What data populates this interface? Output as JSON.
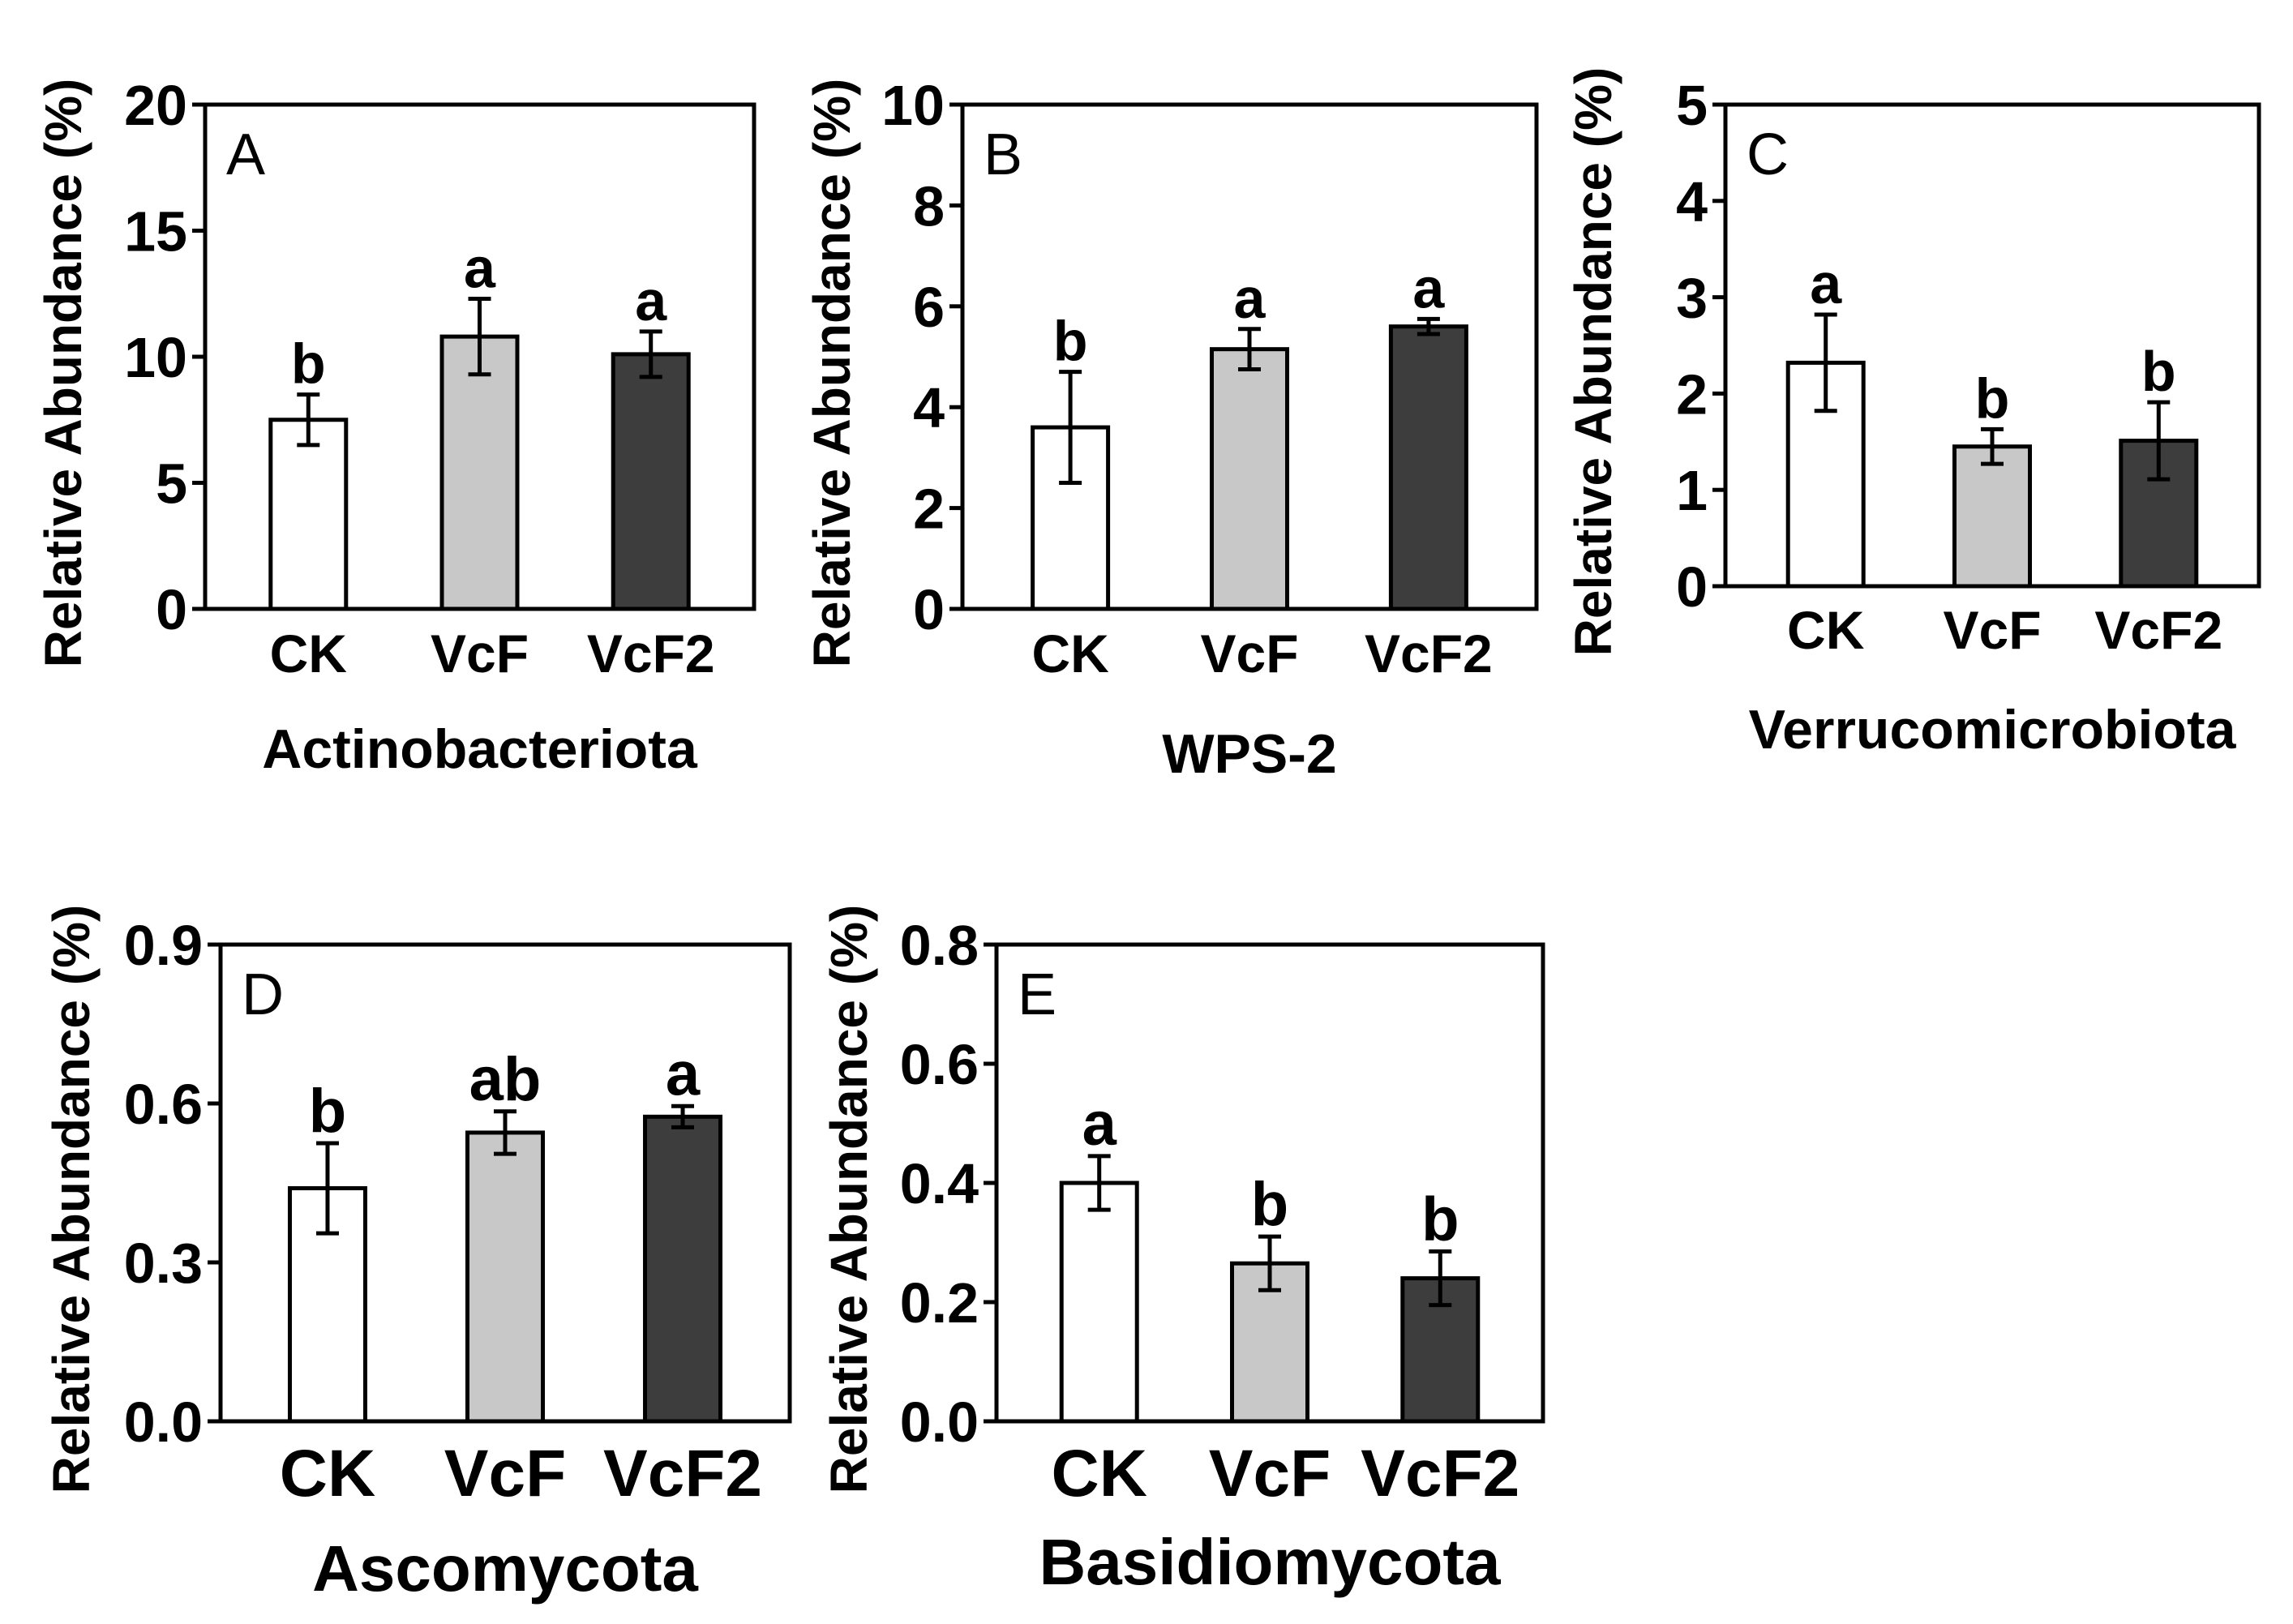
{
  "chart_data": [
    {
      "type": "bar",
      "panel": "A",
      "title": "",
      "xlabel": "Actinobacteriota",
      "ylabel": "Relative Abundance (%)",
      "ylim": [
        0,
        20
      ],
      "yticks": [
        0,
        5,
        10,
        15,
        20
      ],
      "ytick_labels": [
        "0",
        "5",
        "10",
        "15",
        "20"
      ],
      "categories": [
        "CK",
        "VcF",
        "VcF2"
      ],
      "values": [
        7.5,
        10.8,
        10.1
      ],
      "errors": [
        1.0,
        1.5,
        0.9
      ],
      "significance": [
        "b",
        "a",
        "a"
      ],
      "colors": [
        "#ffffff",
        "#c8c8c8",
        "#3d3d3d"
      ]
    },
    {
      "type": "bar",
      "panel": "B",
      "title": "",
      "xlabel": "WPS-2",
      "ylabel": "Relative Abundance (%)",
      "ylim": [
        0,
        10
      ],
      "yticks": [
        0,
        2,
        4,
        6,
        8,
        10
      ],
      "ytick_labels": [
        "0",
        "2",
        "4",
        "6",
        "8",
        "10"
      ],
      "categories": [
        "CK",
        "VcF",
        "VcF2"
      ],
      "values": [
        3.6,
        5.15,
        5.6
      ],
      "errors": [
        1.1,
        0.4,
        0.15
      ],
      "significance": [
        "b",
        "a",
        "a"
      ],
      "colors": [
        "#ffffff",
        "#c8c8c8",
        "#3d3d3d"
      ]
    },
    {
      "type": "bar",
      "panel": "C",
      "title": "",
      "xlabel": "Verrucomicrobiota",
      "ylabel": "Relative Abundance (%)",
      "ylim": [
        0,
        5
      ],
      "yticks": [
        0,
        1,
        2,
        3,
        4,
        5
      ],
      "ytick_labels": [
        "0",
        "1",
        "2",
        "3",
        "4",
        "5"
      ],
      "categories": [
        "CK",
        "VcF",
        "VcF2"
      ],
      "values": [
        2.32,
        1.45,
        1.51
      ],
      "errors": [
        0.5,
        0.18,
        0.4
      ],
      "significance": [
        "a",
        "b",
        "b"
      ],
      "colors": [
        "#ffffff",
        "#c8c8c8",
        "#3d3d3d"
      ]
    },
    {
      "type": "bar",
      "panel": "D",
      "title": "",
      "xlabel": "Ascomycota",
      "ylabel": "Relative Abundance (%)",
      "ylim": [
        0,
        0.9
      ],
      "yticks": [
        0,
        0.3,
        0.6,
        0.9
      ],
      "ytick_labels": [
        "0.0",
        "0.3",
        "0.6",
        "0.9"
      ],
      "categories": [
        "CK",
        "VcF",
        "VcF2"
      ],
      "values": [
        0.44,
        0.545,
        0.575
      ],
      "errors": [
        0.085,
        0.04,
        0.02
      ],
      "significance": [
        "b",
        "ab",
        "a"
      ],
      "colors": [
        "#ffffff",
        "#c8c8c8",
        "#3d3d3d"
      ]
    },
    {
      "type": "bar",
      "panel": "E",
      "title": "",
      "xlabel": "Basidiomycota",
      "ylabel": "Relative Abundance (%)",
      "ylim": [
        0,
        0.8
      ],
      "yticks": [
        0,
        0.2,
        0.4,
        0.6,
        0.8
      ],
      "ytick_labels": [
        "0.0",
        "0.2",
        "0.4",
        "0.6",
        "0.8"
      ],
      "categories": [
        "CK",
        "VcF",
        "VcF2"
      ],
      "values": [
        0.4,
        0.265,
        0.24
      ],
      "errors": [
        0.045,
        0.045,
        0.045
      ],
      "significance": [
        "a",
        "b",
        "b"
      ],
      "colors": [
        "#ffffff",
        "#c8c8c8",
        "#3d3d3d"
      ]
    }
  ]
}
